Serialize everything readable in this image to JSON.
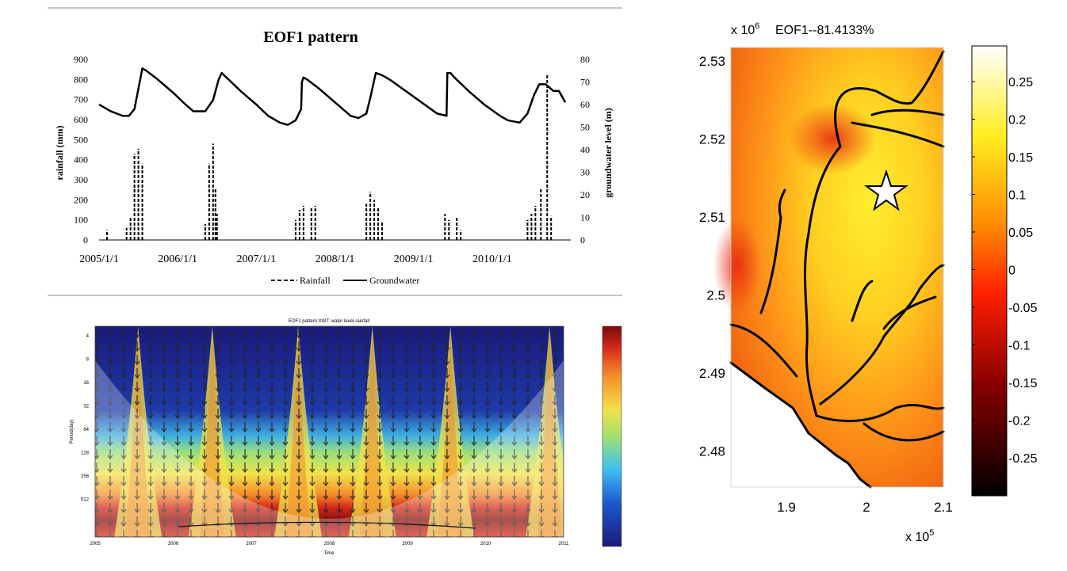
{
  "chart_data": [
    {
      "type": "line",
      "title": "EOF1 pattern",
      "ylabel": "rainfall (mm)",
      "y2label": "groundwater level (m)",
      "ylim": [
        0,
        900
      ],
      "y2lim": [
        0,
        80
      ],
      "yticks": [
        "0",
        "100",
        "200",
        "300",
        "400",
        "500",
        "600",
        "700",
        "800",
        "900"
      ],
      "y2ticks": [
        "0",
        "10",
        "20",
        "30",
        "40",
        "50",
        "60",
        "70",
        "80"
      ],
      "xticks": [
        "2005/1/1",
        "2006/1/1",
        "2007/1/1",
        "2008/1/1",
        "2009/1/1",
        "2010/1/1"
      ],
      "legend": [
        "Rainfall",
        "Groundwater"
      ],
      "legend_position": "bottom",
      "series": [
        {
          "name": "Groundwater",
          "axis": "right",
          "style": "solid",
          "x": [
            2005.0,
            2005.15,
            2005.3,
            2005.38,
            2005.45,
            2005.5,
            2005.55,
            2005.6,
            2005.75,
            2005.95,
            2006.1,
            2006.2,
            2006.35,
            2006.45,
            2006.52,
            2006.56,
            2006.62,
            2006.8,
            2007.0,
            2007.15,
            2007.3,
            2007.4,
            2007.5,
            2007.57,
            2007.58,
            2007.6,
            2007.65,
            2007.8,
            2008.0,
            2008.2,
            2008.3,
            2008.4,
            2008.45,
            2008.52,
            2008.6,
            2008.7,
            2008.9,
            2009.1,
            2009.3,
            2009.42,
            2009.43,
            2009.47,
            2009.52,
            2009.7,
            2009.9,
            2010.1,
            2010.2,
            2010.35,
            2010.45,
            2010.53,
            2010.6,
            2010.68,
            2010.78,
            2010.85,
            2010.93
          ],
          "values": [
            60,
            57,
            55,
            55,
            58,
            67,
            76,
            75,
            71,
            65,
            60,
            57,
            57,
            62,
            71,
            74,
            72,
            66,
            60,
            55,
            52,
            51,
            53,
            58,
            70,
            72,
            71,
            67,
            61,
            55,
            54,
            56,
            63,
            74,
            73,
            71,
            66,
            61,
            56,
            55,
            74,
            74,
            72,
            66,
            60,
            55,
            53,
            52,
            56,
            64,
            69,
            69,
            66,
            66,
            61
          ]
        },
        {
          "name": "Rainfall",
          "axis": "left",
          "style": "dashed",
          "spikes": [
            {
              "x": 2005.45,
              "value": 430
            },
            {
              "x": 2005.5,
              "value": 455
            },
            {
              "x": 2005.55,
              "value": 380
            },
            {
              "x": 2005.4,
              "value": 110
            },
            {
              "x": 2005.35,
              "value": 60
            },
            {
              "x": 2005.1,
              "value": 50
            },
            {
              "x": 2006.4,
              "value": 380
            },
            {
              "x": 2006.45,
              "value": 480
            },
            {
              "x": 2006.48,
              "value": 260
            },
            {
              "x": 2006.5,
              "value": 130
            },
            {
              "x": 2006.35,
              "value": 80
            },
            {
              "x": 2007.5,
              "value": 100
            },
            {
              "x": 2007.55,
              "value": 150
            },
            {
              "x": 2007.6,
              "value": 170
            },
            {
              "x": 2007.7,
              "value": 160
            },
            {
              "x": 2007.75,
              "value": 170
            },
            {
              "x": 2008.4,
              "value": 180
            },
            {
              "x": 2008.45,
              "value": 240
            },
            {
              "x": 2008.5,
              "value": 200
            },
            {
              "x": 2008.55,
              "value": 160
            },
            {
              "x": 2008.6,
              "value": 90
            },
            {
              "x": 2009.4,
              "value": 130
            },
            {
              "x": 2009.45,
              "value": 100
            },
            {
              "x": 2009.55,
              "value": 110
            },
            {
              "x": 2009.6,
              "value": 50
            },
            {
              "x": 2010.45,
              "value": 100
            },
            {
              "x": 2010.5,
              "value": 130
            },
            {
              "x": 2010.55,
              "value": 170
            },
            {
              "x": 2010.62,
              "value": 260
            },
            {
              "x": 2010.7,
              "value": 830
            },
            {
              "x": 2010.75,
              "value": 120
            }
          ]
        }
      ]
    },
    {
      "type": "heatmap",
      "title": "EOF1 pattern:XWT: water level-rainfall",
      "xlabel": "Time",
      "ylabel": "Period(day)",
      "xticks": [
        "2005",
        "2006",
        "2007",
        "2008",
        "2009",
        "2010",
        "2011"
      ],
      "yticks": [
        "4",
        "8",
        "16",
        "32",
        "64",
        "128",
        "256",
        "512"
      ],
      "peaks_x": [
        2005.55,
        2006.5,
        2007.6,
        2008.55,
        2009.55,
        2010.82
      ]
    },
    {
      "type": "heatmap",
      "title": "EOF1--81.4133%",
      "y_multiplier": "x 10",
      "y_multiplier_exp": "6",
      "x_multiplier": "x 10",
      "x_multiplier_exp": "5",
      "yticks": [
        "2.53",
        "2.52",
        "2.51",
        "2.5",
        "2.49",
        "2.48"
      ],
      "xticks": [
        "1.9",
        "2",
        "2.1"
      ],
      "colorbar_ticks": [
        "0.25",
        "0.2",
        "0.15",
        "0.1",
        "0.05",
        "0",
        "-0.05",
        "-0.1",
        "-0.15",
        "-0.2",
        "-0.25"
      ],
      "colors": {
        "low": "#000000",
        "mid_low": "#c80000",
        "mid": "#ff7a00",
        "mid_high": "#ffee20",
        "high": "#ffffff"
      },
      "marker": "star"
    }
  ]
}
